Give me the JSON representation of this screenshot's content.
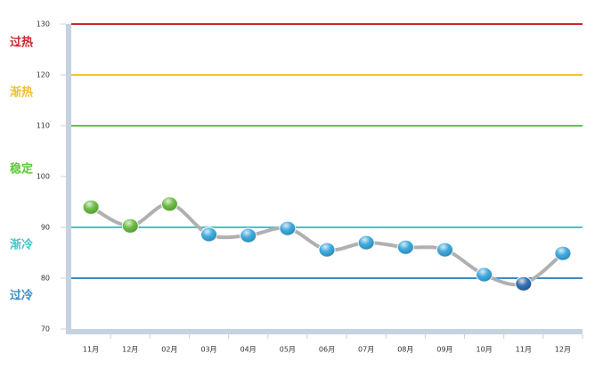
{
  "chart_data": {
    "type": "line",
    "categories": [
      "11月",
      "12月",
      "02月",
      "03月",
      "04月",
      "05月",
      "06月",
      "07月",
      "08月",
      "09月",
      "10月",
      "11月",
      "12月"
    ],
    "values": [
      94,
      90.3,
      94.6,
      88.6,
      88.4,
      89.8,
      85.6,
      87,
      86.1,
      85.6,
      80.7,
      78.9,
      84.9
    ],
    "point_colors": [
      "#5cb531",
      "#5cb531",
      "#5cb531",
      "#2b9fd8",
      "#2b9fd8",
      "#2b9fd8",
      "#2b9fd8",
      "#2b9fd8",
      "#2b9fd8",
      "#2b9fd8",
      "#2b9fd8",
      "#1f5fa8",
      "#2b9fd8"
    ],
    "line_color": "#b0b0b0",
    "ylim": [
      70,
      130
    ],
    "yticks": [
      70,
      80,
      90,
      100,
      110,
      120,
      130
    ],
    "thresholds": [
      {
        "value": 130,
        "color": "#c8282a"
      },
      {
        "value": 120,
        "color": "#f0c030"
      },
      {
        "value": 110,
        "color": "#5ec83a"
      },
      {
        "value": 90,
        "color": "#40c8c8"
      },
      {
        "value": 80,
        "color": "#3a8cc8"
      }
    ],
    "zones": [
      {
        "name": "过热",
        "color": "#c8282a"
      },
      {
        "name": "渐热",
        "color": "#f0c030"
      },
      {
        "name": "稳定",
        "color": "#5ec83a"
      },
      {
        "name": "渐冷",
        "color": "#40c8c8"
      },
      {
        "name": "过冷",
        "color": "#3a8cc8"
      }
    ]
  }
}
